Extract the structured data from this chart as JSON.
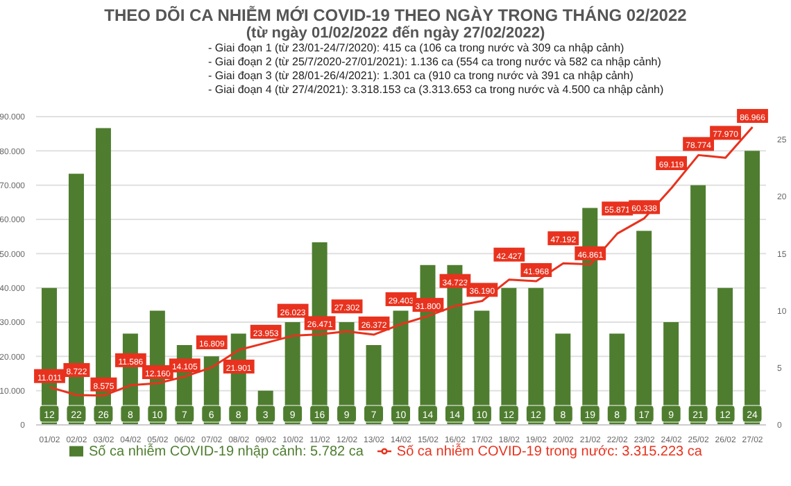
{
  "chart_data": {
    "type": "bar",
    "title": "THEO DÕI CA NHIỄM MỚI COVID-19 THEO NGÀY TRONG THÁNG 02/2022",
    "subtitle": "(từ ngày 01/02/2022 đến ngày 27/02/2022)",
    "annotations": [
      "- Giai đoạn 1 (từ 23/01-24/7/2020): 415 ca (106 ca trong nước và 309 ca nhập cảnh)",
      "- Giai đoạn 2 (từ 25/7/2020-27/01/2021): 1.136 ca (554 ca trong nước và 582 ca nhập cảnh)",
      "- Giai đoạn 3 (từ 28/01-26/4/2021): 1.301 ca (910 ca trong nước và 391 ca nhập cảnh)",
      "- Giai đoạn 4 (từ 27/4/2021): 3.318.153 ca (3.313.653 ca trong nước và 4.500 ca nhập cảnh)"
    ],
    "categories": [
      "01/02",
      "02/02",
      "03/02",
      "04/02",
      "05/02",
      "06/02",
      "07/02",
      "08/02",
      "09/02",
      "10/02",
      "11/02",
      "12/02",
      "13/02",
      "14/02",
      "15/02",
      "16/02",
      "17/02",
      "18/02",
      "19/02",
      "20/02",
      "21/02",
      "22/02",
      "23/02",
      "24/02",
      "25/02",
      "26/02",
      "27/02"
    ],
    "series": [
      {
        "name": "Số ca nhiễm COVID-19 nhập cảnh: 5.782 ca",
        "axis": "y2",
        "color": "#4e7d2f",
        "values": [
          12,
          22,
          26,
          8,
          10,
          7,
          6,
          8,
          3,
          9,
          16,
          9,
          7,
          10,
          14,
          14,
          10,
          12,
          12,
          8,
          19,
          8,
          17,
          9,
          21,
          12,
          24
        ]
      },
      {
        "name": "Số ca nhiễm COVID-19 trong nước: 3.315.223 ca",
        "type": "line",
        "axis": "y",
        "color": "#e8321e",
        "values": [
          11011,
          8722,
          8575,
          11586,
          12160,
          14105,
          16809,
          21901,
          23953,
          26023,
          26471,
          27302,
          26372,
          29403,
          31800,
          34723,
          36190,
          42427,
          41968,
          47192,
          46861,
          55871,
          60338,
          69119,
          78774,
          77970,
          86966
        ],
        "value_labels": [
          "11.011",
          "8.722",
          "8.575",
          "11.586",
          "12.160",
          "14.105",
          "16.809",
          "21.901",
          "23.953",
          "26.023",
          "26.471",
          "27.302",
          "26.372",
          "29.403",
          "31.800",
          "34.723",
          "36.190",
          "42.427",
          "41.968",
          "47.192",
          "46.861",
          "55.871",
          "60.338",
          "69.119",
          "78.774",
          "77.970",
          "86.966"
        ]
      }
    ],
    "ylim": [
      0,
      90000
    ],
    "yticks": [
      {
        "value": 0,
        "label": "0"
      },
      {
        "value": 10000,
        "label": "10.000"
      },
      {
        "value": 20000,
        "label": "20.000"
      },
      {
        "value": 30000,
        "label": "30.000"
      },
      {
        "value": 40000,
        "label": "40.000"
      },
      {
        "value": 50000,
        "label": "50.000"
      },
      {
        "value": 60000,
        "label": "60.000"
      },
      {
        "value": 70000,
        "label": "70.000"
      },
      {
        "value": 80000,
        "label": "80.000"
      },
      {
        "value": 90000,
        "label": "90.000"
      }
    ],
    "y2lim": [
      0,
      27
    ],
    "y2ticks": [
      0,
      5,
      10,
      15,
      20,
      25
    ],
    "grid": "y",
    "legend": "bottom",
    "data_labels": true,
    "marker": "none"
  }
}
